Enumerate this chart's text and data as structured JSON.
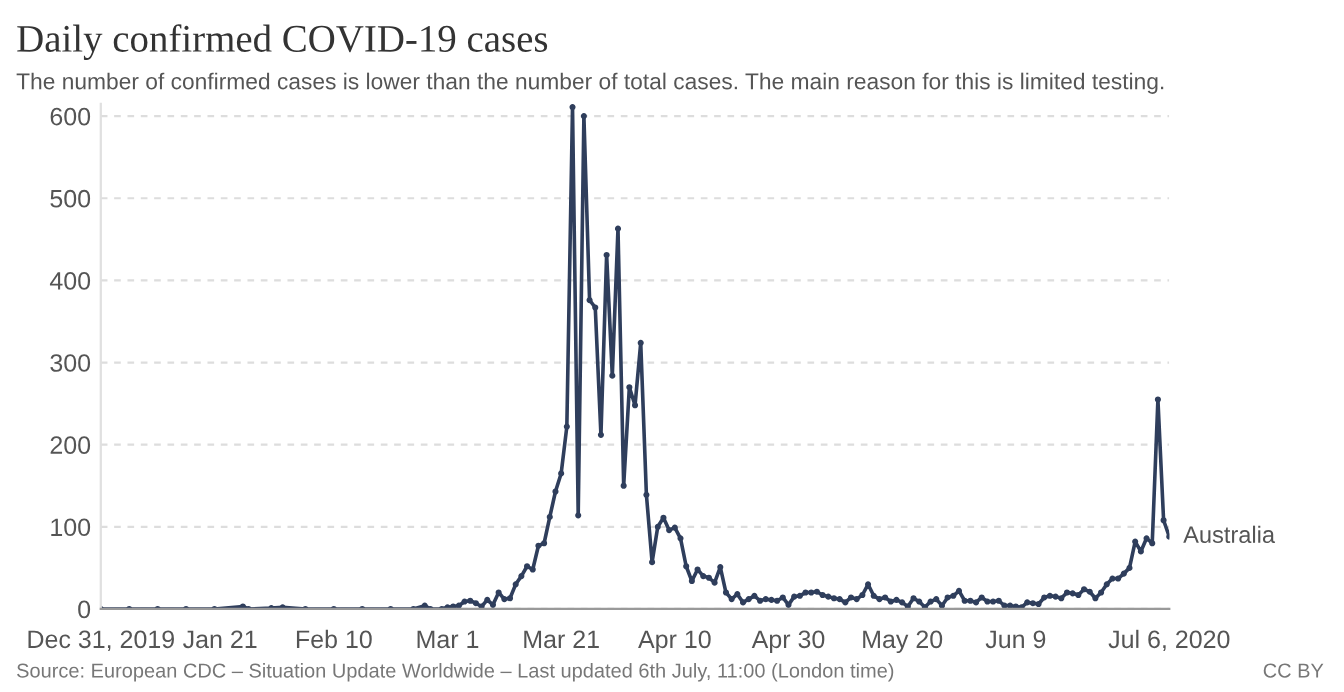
{
  "chart_data": {
    "type": "line",
    "title": "Daily confirmed COVID-19 cases",
    "subtitle": "The number of confirmed cases is lower than the number of total cases. The main reason for this is limited testing.",
    "annotations": [
      "Source: European CDC – Situation Update Worldwide – Last updated 6th July, 11:00 (London time)",
      "CC BY"
    ],
    "x": [
      "2019-12-31",
      "2020-01-05",
      "2020-01-10",
      "2020-01-15",
      "2020-01-20",
      "2020-01-25",
      "2020-01-26",
      "2020-01-30",
      "2020-02-01",
      "2020-02-05",
      "2020-02-10",
      "2020-02-15",
      "2020-02-20",
      "2020-02-24",
      "2020-02-26",
      "2020-02-27",
      "2020-02-29",
      "2020-03-01",
      "2020-03-02",
      "2020-03-03",
      "2020-03-04",
      "2020-03-05",
      "2020-03-06",
      "2020-03-07",
      "2020-03-08",
      "2020-03-09",
      "2020-03-10",
      "2020-03-11",
      "2020-03-12",
      "2020-03-13",
      "2020-03-14",
      "2020-03-15",
      "2020-03-16",
      "2020-03-17",
      "2020-03-18",
      "2020-03-19",
      "2020-03-20",
      "2020-03-21",
      "2020-03-22",
      "2020-03-23",
      "2020-03-24",
      "2020-03-25",
      "2020-03-26",
      "2020-03-27",
      "2020-03-28",
      "2020-03-29",
      "2020-03-30",
      "2020-03-31",
      "2020-04-01",
      "2020-04-02",
      "2020-04-03",
      "2020-04-04",
      "2020-04-05",
      "2020-04-06",
      "2020-04-07",
      "2020-04-08",
      "2020-04-09",
      "2020-04-10",
      "2020-04-11",
      "2020-04-12",
      "2020-04-13",
      "2020-04-14",
      "2020-04-15",
      "2020-04-16",
      "2020-04-17",
      "2020-04-18",
      "2020-04-19",
      "2020-04-20",
      "2020-04-21",
      "2020-04-22",
      "2020-04-23",
      "2020-04-24",
      "2020-04-25",
      "2020-04-26",
      "2020-04-27",
      "2020-04-28",
      "2020-04-29",
      "2020-04-30",
      "2020-05-01",
      "2020-05-02",
      "2020-05-03",
      "2020-05-04",
      "2020-05-05",
      "2020-05-06",
      "2020-05-07",
      "2020-05-08",
      "2020-05-09",
      "2020-05-10",
      "2020-05-11",
      "2020-05-12",
      "2020-05-13",
      "2020-05-14",
      "2020-05-15",
      "2020-05-16",
      "2020-05-17",
      "2020-05-18",
      "2020-05-19",
      "2020-05-20",
      "2020-05-21",
      "2020-05-22",
      "2020-05-23",
      "2020-05-24",
      "2020-05-25",
      "2020-05-26",
      "2020-05-27",
      "2020-05-28",
      "2020-05-29",
      "2020-05-30",
      "2020-05-31",
      "2020-06-01",
      "2020-06-02",
      "2020-06-03",
      "2020-06-04",
      "2020-06-05",
      "2020-06-06",
      "2020-06-07",
      "2020-06-08",
      "2020-06-09",
      "2020-06-10",
      "2020-06-11",
      "2020-06-12",
      "2020-06-13",
      "2020-06-14",
      "2020-06-15",
      "2020-06-16",
      "2020-06-17",
      "2020-06-18",
      "2020-06-19",
      "2020-06-20",
      "2020-06-21",
      "2020-06-22",
      "2020-06-23",
      "2020-06-24",
      "2020-06-25",
      "2020-06-26",
      "2020-06-27",
      "2020-06-28",
      "2020-06-29",
      "2020-06-30",
      "2020-07-01",
      "2020-07-02",
      "2020-07-03",
      "2020-07-04",
      "2020-07-05",
      "2020-07-06"
    ],
    "series": [
      {
        "name": "Australia",
        "color": "#2f3e5c",
        "values": [
          0,
          0,
          0,
          0,
          0,
          3,
          0,
          1,
          2,
          0,
          0,
          0,
          0,
          0,
          4,
          0,
          0,
          2,
          3,
          4,
          9,
          10,
          7,
          3,
          11,
          5,
          20,
          12,
          13,
          30,
          40,
          52,
          48,
          77,
          80,
          112,
          143,
          165,
          222,
          611,
          114,
          600,
          376,
          367,
          212,
          431,
          284,
          463,
          150,
          270,
          248,
          324,
          139,
          57,
          100,
          111,
          96,
          99,
          86,
          52,
          34,
          48,
          40,
          38,
          32,
          51,
          20,
          12,
          18,
          8,
          12,
          16,
          10,
          12,
          11,
          10,
          14,
          5,
          15,
          16,
          20,
          20,
          21,
          17,
          15,
          13,
          12,
          8,
          14,
          12,
          17,
          30,
          16,
          12,
          14,
          9,
          11,
          8,
          3,
          13,
          9,
          2,
          9,
          12,
          4,
          14,
          16,
          22,
          10,
          10,
          8,
          14,
          9,
          9,
          10,
          4,
          4,
          3,
          2,
          8,
          7,
          6,
          14,
          16,
          15,
          13,
          20,
          19,
          17,
          24,
          21,
          13,
          20,
          30,
          37,
          37,
          43,
          50,
          82,
          70,
          86,
          80,
          255,
          108,
          88
        ]
      }
    ],
    "xlim": [
      "2019-12-31",
      "2020-07-06"
    ],
    "xticks": [
      {
        "value": "2019-12-31",
        "label": "Dec 31, 2019"
      },
      {
        "value": "2020-01-21",
        "label": "Jan 21"
      },
      {
        "value": "2020-02-10",
        "label": "Feb 10"
      },
      {
        "value": "2020-03-01",
        "label": "Mar 1"
      },
      {
        "value": "2020-03-21",
        "label": "Mar 21"
      },
      {
        "value": "2020-04-10",
        "label": "Apr 10"
      },
      {
        "value": "2020-04-30",
        "label": "Apr 30"
      },
      {
        "value": "2020-05-20",
        "label": "May 20"
      },
      {
        "value": "2020-06-09",
        "label": "Jun 9"
      },
      {
        "value": "2020-07-06",
        "label": "Jul 6, 2020"
      }
    ],
    "ylim": [
      0,
      615
    ],
    "yticks": [
      0,
      100,
      200,
      300,
      400,
      500,
      600
    ],
    "grid": "y",
    "marker": "circle",
    "line_style": "solid"
  }
}
